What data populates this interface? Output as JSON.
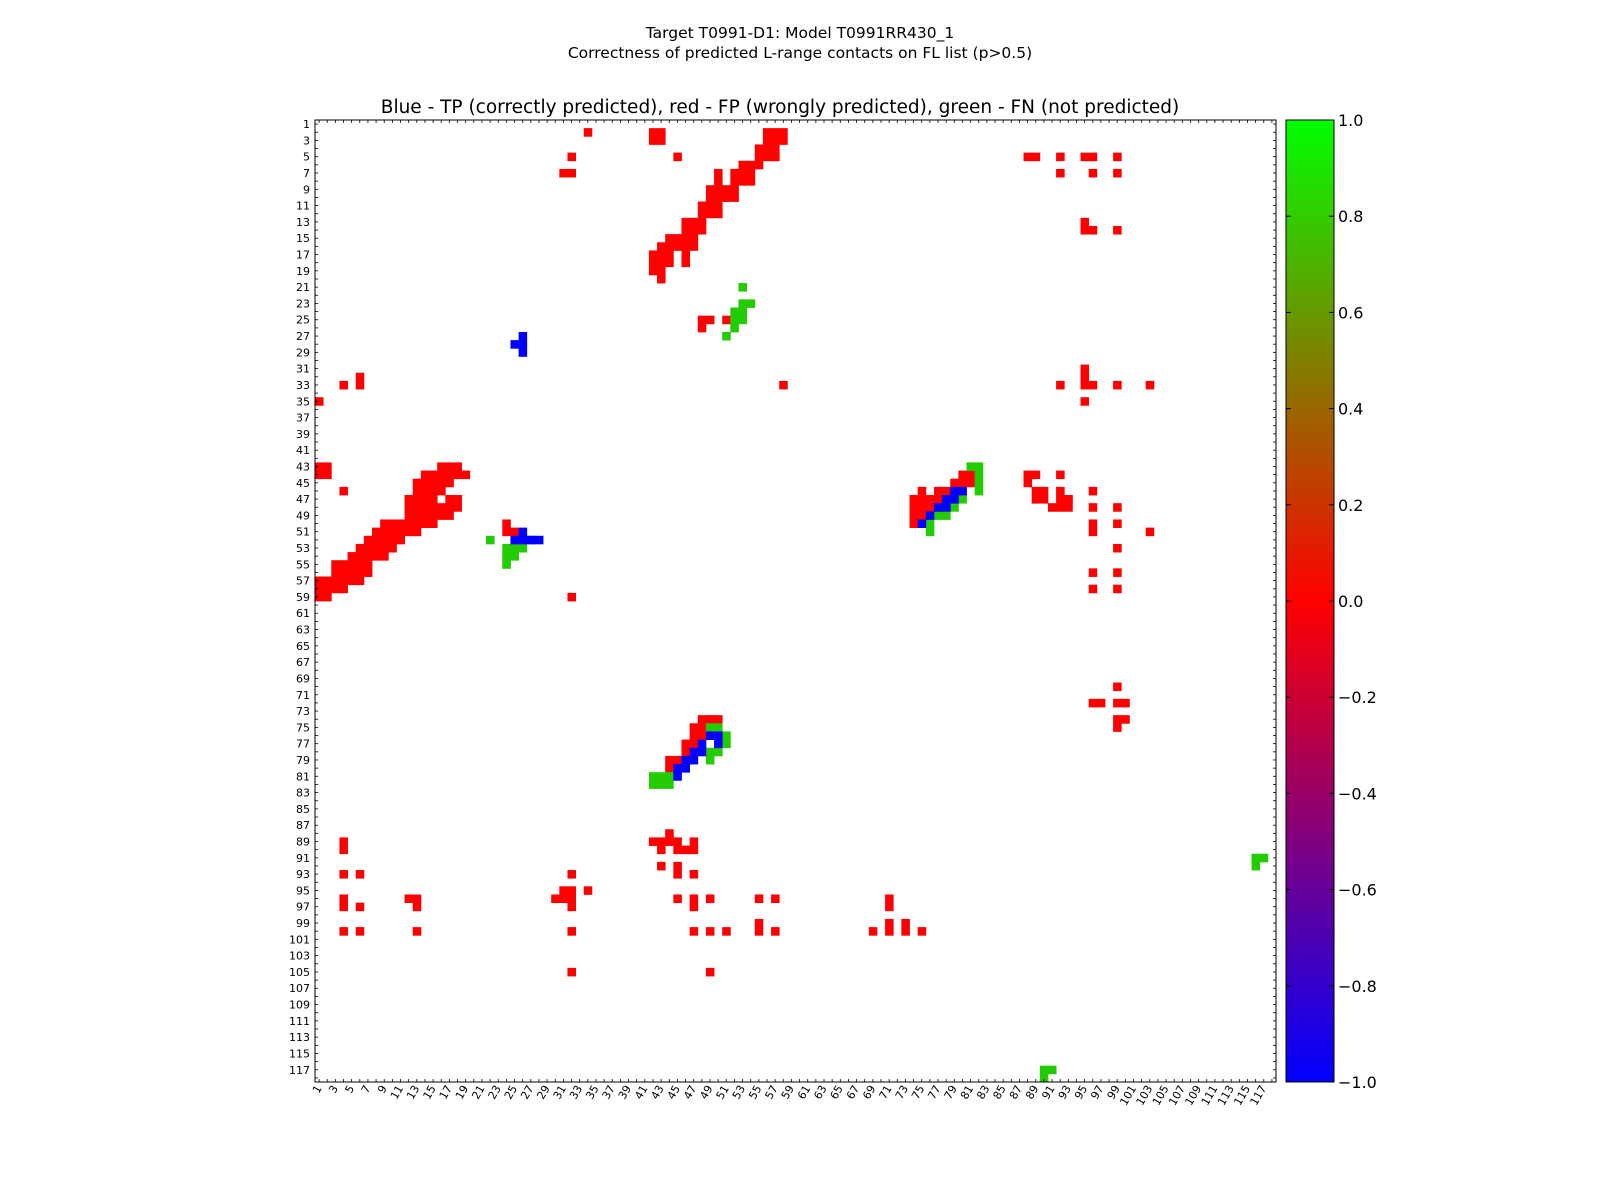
{
  "suptitle": {
    "line1": "Target T0991-D1: Model T0991RR430_1",
    "line2": "Correctness of predicted L-range contacts on FL list (p>0.5)"
  },
  "chart_data": {
    "type": "heatmap",
    "title": "Blue - TP (correctly predicted), red - FP (wrongly predicted), green - FN (not predicted)",
    "n": 118,
    "axis_tick_labels": [
      "1",
      "3",
      "5",
      "7",
      "9",
      "11",
      "13",
      "15",
      "17",
      "19",
      "21",
      "23",
      "25",
      "27",
      "29",
      "31",
      "33",
      "35",
      "37",
      "39",
      "41",
      "43",
      "45",
      "47",
      "49",
      "51",
      "53",
      "55",
      "57",
      "59",
      "61",
      "63",
      "65",
      "67",
      "69",
      "71",
      "73",
      "75",
      "77",
      "79",
      "81",
      "83",
      "85",
      "87",
      "89",
      "91",
      "93",
      "95",
      "97",
      "99",
      "101",
      "103",
      "105",
      "107",
      "109",
      "111",
      "113",
      "115",
      "117"
    ],
    "colorbar": {
      "min": -1.0,
      "max": 1.0,
      "ticks": [
        1.0,
        0.8,
        0.6,
        0.4,
        0.2,
        0.0,
        -0.2,
        -0.4,
        -0.6,
        -0.8,
        -1.0
      ],
      "tick_labels": [
        "1.0",
        "0.8",
        "0.6",
        "0.4",
        "0.2",
        "0.0",
        "−0.2",
        "−0.4",
        "−0.6",
        "−0.8",
        "−1.0"
      ],
      "colormap": [
        "#0000ff",
        "#ff0000",
        "#00ff00"
      ]
    },
    "colors": {
      "TP": "#0000ff",
      "FP": "#ff0000",
      "FN": "#22cc00"
    },
    "TP": [
      [
        27,
        26
      ],
      [
        28,
        26
      ],
      [
        29,
        26
      ],
      [
        28,
        25
      ],
      [
        51,
        26
      ],
      [
        52,
        25
      ],
      [
        52,
        26
      ],
      [
        52,
        27
      ],
      [
        52,
        28
      ],
      [
        46,
        79
      ],
      [
        46,
        80
      ],
      [
        47,
        78
      ],
      [
        47,
        79
      ],
      [
        48,
        77
      ],
      [
        48,
        78
      ],
      [
        49,
        76
      ],
      [
        50,
        75
      ],
      [
        76,
        49
      ],
      [
        76,
        50
      ],
      [
        77,
        48
      ],
      [
        77,
        50
      ],
      [
        78,
        47
      ],
      [
        78,
        48
      ],
      [
        79,
        46
      ],
      [
        79,
        47
      ],
      [
        80,
        45
      ],
      [
        80,
        46
      ],
      [
        81,
        45
      ]
    ],
    "FP": [
      [
        2,
        34
      ],
      [
        2,
        42
      ],
      [
        2,
        43
      ],
      [
        3,
        42
      ],
      [
        3,
        43
      ],
      [
        2,
        56
      ],
      [
        2,
        57
      ],
      [
        2,
        58
      ],
      [
        3,
        56
      ],
      [
        3,
        57
      ],
      [
        3,
        58
      ],
      [
        4,
        55
      ],
      [
        4,
        56
      ],
      [
        4,
        57
      ],
      [
        5,
        55
      ],
      [
        5,
        56
      ],
      [
        5,
        57
      ],
      [
        5,
        32
      ],
      [
        5,
        45
      ],
      [
        6,
        53
      ],
      [
        6,
        54
      ],
      [
        6,
        55
      ],
      [
        7,
        50
      ],
      [
        7,
        52
      ],
      [
        7,
        53
      ],
      [
        7,
        54
      ],
      [
        8,
        50
      ],
      [
        8,
        52
      ],
      [
        8,
        53
      ],
      [
        8,
        54
      ],
      [
        7,
        31
      ],
      [
        7,
        32
      ],
      [
        9,
        49
      ],
      [
        9,
        50
      ],
      [
        9,
        51
      ],
      [
        9,
        52
      ],
      [
        10,
        49
      ],
      [
        10,
        50
      ],
      [
        10,
        51
      ],
      [
        10,
        52
      ],
      [
        11,
        48
      ],
      [
        11,
        49
      ],
      [
        11,
        50
      ],
      [
        12,
        48
      ],
      [
        12,
        49
      ],
      [
        12,
        50
      ],
      [
        13,
        46
      ],
      [
        13,
        47
      ],
      [
        13,
        48
      ],
      [
        14,
        46
      ],
      [
        14,
        47
      ],
      [
        14,
        48
      ],
      [
        15,
        44
      ],
      [
        15,
        45
      ],
      [
        15,
        46
      ],
      [
        15,
        47
      ],
      [
        16,
        43
      ],
      [
        16,
        44
      ],
      [
        16,
        45
      ],
      [
        16,
        46
      ],
      [
        16,
        47
      ],
      [
        17,
        42
      ],
      [
        17,
        43
      ],
      [
        17,
        44
      ],
      [
        17,
        46
      ],
      [
        18,
        42
      ],
      [
        18,
        43
      ],
      [
        18,
        44
      ],
      [
        18,
        46
      ],
      [
        19,
        42
      ],
      [
        19,
        43
      ],
      [
        20,
        43
      ],
      [
        5,
        88
      ],
      [
        5,
        89
      ],
      [
        5,
        92
      ],
      [
        5,
        95
      ],
      [
        5,
        96
      ],
      [
        5,
        99
      ],
      [
        7,
        92
      ],
      [
        7,
        96
      ],
      [
        7,
        99
      ],
      [
        13,
        95
      ],
      [
        14,
        95
      ],
      [
        14,
        96
      ],
      [
        14,
        99
      ],
      [
        25,
        48
      ],
      [
        25,
        49
      ],
      [
        25,
        51
      ],
      [
        26,
        48
      ],
      [
        32,
        6
      ],
      [
        33,
        6
      ],
      [
        33,
        4
      ],
      [
        33,
        58
      ],
      [
        31,
        95
      ],
      [
        32,
        95
      ],
      [
        33,
        95
      ],
      [
        33,
        96
      ],
      [
        33,
        92
      ],
      [
        33,
        99
      ],
      [
        33,
        103
      ],
      [
        35,
        95
      ],
      [
        35,
        1
      ],
      [
        43,
        1
      ],
      [
        43,
        2
      ],
      [
        44,
        1
      ],
      [
        44,
        2
      ],
      [
        43,
        16
      ],
      [
        43,
        17
      ],
      [
        43,
        18
      ],
      [
        44,
        14
      ],
      [
        44,
        15
      ],
      [
        44,
        16
      ],
      [
        44,
        17
      ],
      [
        44,
        18
      ],
      [
        44,
        19
      ],
      [
        45,
        13
      ],
      [
        45,
        14
      ],
      [
        45,
        15
      ],
      [
        45,
        16
      ],
      [
        45,
        17
      ],
      [
        46,
        4
      ],
      [
        46,
        13
      ],
      [
        46,
        14
      ],
      [
        46,
        15
      ],
      [
        46,
        16
      ],
      [
        47,
        12
      ],
      [
        47,
        13
      ],
      [
        47,
        14
      ],
      [
        47,
        15
      ],
      [
        47,
        17
      ],
      [
        47,
        18
      ],
      [
        48,
        12
      ],
      [
        48,
        13
      ],
      [
        48,
        14
      ],
      [
        48,
        15
      ],
      [
        48,
        16
      ],
      [
        48,
        17
      ],
      [
        48,
        18
      ],
      [
        49,
        12
      ],
      [
        49,
        13
      ],
      [
        49,
        14
      ],
      [
        49,
        15
      ],
      [
        49,
        16
      ],
      [
        49,
        17
      ],
      [
        50,
        9
      ],
      [
        50,
        10
      ],
      [
        50,
        11
      ],
      [
        50,
        12
      ],
      [
        50,
        13
      ],
      [
        50,
        14
      ],
      [
        50,
        15
      ],
      [
        51,
        8
      ],
      [
        51,
        9
      ],
      [
        51,
        10
      ],
      [
        51,
        11
      ],
      [
        51,
        12
      ],
      [
        51,
        13
      ],
      [
        52,
        7
      ],
      [
        52,
        8
      ],
      [
        52,
        9
      ],
      [
        52,
        10
      ],
      [
        52,
        11
      ],
      [
        53,
        6
      ],
      [
        53,
        7
      ],
      [
        53,
        8
      ],
      [
        53,
        9
      ],
      [
        53,
        10
      ],
      [
        54,
        5
      ],
      [
        54,
        6
      ],
      [
        54,
        7
      ],
      [
        54,
        8
      ],
      [
        54,
        9
      ],
      [
        55,
        3
      ],
      [
        55,
        4
      ],
      [
        55,
        5
      ],
      [
        55,
        6
      ],
      [
        55,
        7
      ],
      [
        56,
        3
      ],
      [
        56,
        4
      ],
      [
        56,
        5
      ],
      [
        56,
        6
      ],
      [
        56,
        7
      ],
      [
        57,
        1
      ],
      [
        57,
        2
      ],
      [
        57,
        3
      ],
      [
        57,
        4
      ],
      [
        57,
        5
      ],
      [
        57,
        6
      ],
      [
        58,
        1
      ],
      [
        58,
        2
      ],
      [
        58,
        3
      ],
      [
        58,
        4
      ],
      [
        59,
        1
      ],
      [
        59,
        2
      ],
      [
        59,
        32
      ],
      [
        50,
        24
      ],
      [
        51,
        24
      ],
      [
        51,
        25
      ],
      [
        44,
        88
      ],
      [
        44,
        89
      ],
      [
        44,
        92
      ],
      [
        45,
        88
      ],
      [
        46,
        89
      ],
      [
        46,
        90
      ],
      [
        46,
        92
      ],
      [
        46,
        96
      ],
      [
        47,
        89
      ],
      [
        47,
        90
      ],
      [
        47,
        92
      ],
      [
        47,
        93
      ],
      [
        48,
        91
      ],
      [
        48,
        92
      ],
      [
        48,
        93
      ],
      [
        48,
        96
      ],
      [
        48,
        99
      ],
      [
        50,
        96
      ],
      [
        50,
        99
      ],
      [
        51,
        96
      ],
      [
        51,
        103
      ],
      [
        53,
        99
      ],
      [
        56,
        96
      ],
      [
        56,
        99
      ],
      [
        58,
        96
      ],
      [
        58,
        99
      ],
      [
        70,
        99
      ],
      [
        72,
        96
      ],
      [
        72,
        97
      ],
      [
        72,
        99
      ],
      [
        72,
        100
      ],
      [
        74,
        99
      ],
      [
        74,
        100
      ],
      [
        75,
        99
      ],
      [
        44,
        80
      ],
      [
        44,
        81
      ],
      [
        45,
        79
      ],
      [
        45,
        80
      ],
      [
        45,
        81
      ],
      [
        46,
        75
      ],
      [
        46,
        77
      ],
      [
        46,
        78
      ],
      [
        47,
        74
      ],
      [
        47,
        75
      ],
      [
        47,
        76
      ],
      [
        47,
        77
      ],
      [
        48,
        74
      ],
      [
        48,
        75
      ],
      [
        48,
        76
      ],
      [
        49,
        74
      ],
      [
        49,
        75
      ],
      [
        50,
        74
      ],
      [
        74,
        48
      ],
      [
        74,
        49
      ],
      [
        74,
        50
      ],
      [
        75,
        47
      ],
      [
        75,
        48
      ],
      [
        76,
        47
      ],
      [
        76,
        48
      ],
      [
        77,
        46
      ],
      [
        77,
        47
      ],
      [
        78,
        46
      ],
      [
        79,
        44
      ],
      [
        79,
        45
      ],
      [
        80,
        44
      ],
      [
        81,
        44
      ],
      [
        88,
        44
      ],
      [
        89,
        42
      ],
      [
        89,
        43
      ],
      [
        89,
        44
      ],
      [
        89,
        45
      ],
      [
        89,
        47
      ],
      [
        90,
        43
      ],
      [
        90,
        45
      ],
      [
        90,
        46
      ],
      [
        90,
        47
      ],
      [
        92,
        43
      ],
      [
        92,
        45
      ],
      [
        93,
        45
      ],
      [
        93,
        47
      ],
      [
        93,
        32
      ],
      [
        93,
        4
      ],
      [
        93,
        6
      ],
      [
        89,
        4
      ],
      [
        90,
        4
      ],
      [
        95,
        31
      ],
      [
        95,
        32
      ],
      [
        95,
        34
      ],
      [
        96,
        32
      ],
      [
        96,
        31
      ],
      [
        96,
        30
      ],
      [
        97,
        32
      ],
      [
        97,
        4
      ],
      [
        97,
        6
      ],
      [
        96,
        4
      ],
      [
        96,
        12
      ],
      [
        96,
        13
      ],
      [
        97,
        13
      ],
      [
        96,
        45
      ],
      [
        96,
        47
      ],
      [
        97,
        47
      ],
      [
        96,
        49
      ],
      [
        96,
        55
      ],
      [
        96,
        57
      ],
      [
        96,
        71
      ],
      [
        97,
        71
      ],
      [
        100,
        4
      ],
      [
        100,
        6
      ],
      [
        100,
        13
      ],
      [
        100,
        32
      ],
      [
        100,
        47
      ],
      [
        100,
        49
      ],
      [
        100,
        51
      ],
      [
        99,
        55
      ],
      [
        100,
        55
      ],
      [
        100,
        57
      ],
      [
        100,
        69
      ],
      [
        100,
        73
      ],
      [
        100,
        75
      ],
      [
        99,
        71
      ],
      [
        100,
        71
      ],
      [
        99,
        73
      ],
      [
        105,
        32
      ],
      [
        105,
        49
      ]
    ],
    "FN": [
      [
        21,
        53
      ],
      [
        23,
        53
      ],
      [
        23,
        54
      ],
      [
        24,
        52
      ],
      [
        24,
        53
      ],
      [
        25,
        52
      ],
      [
        25,
        53
      ],
      [
        26,
        52
      ],
      [
        27,
        51
      ],
      [
        43,
        81
      ],
      [
        43,
        82
      ],
      [
        44,
        82
      ],
      [
        45,
        82
      ],
      [
        46,
        82
      ],
      [
        47,
        79
      ],
      [
        47,
        80
      ],
      [
        48,
        79
      ],
      [
        49,
        77
      ],
      [
        49,
        78
      ],
      [
        50,
        76
      ],
      [
        51,
        76
      ],
      [
        52,
        22
      ],
      [
        52,
        26
      ],
      [
        52,
        27
      ],
      [
        53,
        24
      ],
      [
        53,
        25
      ],
      [
        53,
        26
      ],
      [
        54,
        24
      ],
      [
        54,
        25
      ],
      [
        55,
        24
      ],
      [
        75,
        49
      ],
      [
        75,
        50
      ],
      [
        76,
        51
      ],
      [
        77,
        51
      ],
      [
        78,
        49
      ],
      [
        78,
        50
      ],
      [
        79,
        49
      ],
      [
        81,
        42
      ],
      [
        81,
        43
      ],
      [
        81,
        44
      ],
      [
        82,
        42
      ],
      [
        82,
        43
      ],
      [
        82,
        44
      ],
      [
        91,
        116
      ],
      [
        91,
        117
      ],
      [
        92,
        116
      ],
      [
        117,
        90
      ],
      [
        117,
        91
      ],
      [
        118,
        90
      ]
    ]
  }
}
